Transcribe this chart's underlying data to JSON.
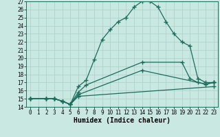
{
  "xlabel": "Humidex (Indice chaleur)",
  "xlim": [
    -0.5,
    23.5
  ],
  "ylim": [
    14,
    27
  ],
  "xticks": [
    0,
    1,
    2,
    3,
    4,
    5,
    6,
    7,
    8,
    9,
    10,
    11,
    12,
    13,
    14,
    15,
    16,
    17,
    18,
    19,
    20,
    21,
    22,
    23
  ],
  "yticks": [
    14,
    15,
    16,
    17,
    18,
    19,
    20,
    21,
    22,
    23,
    24,
    25,
    26,
    27
  ],
  "bg_color": "#c9e8e2",
  "line_color": "#1a6b5a",
  "grid_color": "#a8cfc6",
  "line1_x": [
    0,
    2,
    3,
    4,
    5,
    6,
    7,
    8,
    9,
    10,
    11,
    12,
    13,
    14,
    15,
    16,
    17,
    18,
    19,
    20,
    21,
    22,
    23
  ],
  "line1_y": [
    15,
    15,
    15,
    14.7,
    14.3,
    16.5,
    17.3,
    19.8,
    22.3,
    23.5,
    24.5,
    25.0,
    26.3,
    27.0,
    27.0,
    26.3,
    24.5,
    23.0,
    22.0,
    21.5,
    17.5,
    17.0,
    17.0
  ],
  "line2_x": [
    0,
    2,
    3,
    4,
    5,
    6,
    7,
    14,
    19,
    20,
    21,
    22,
    23
  ],
  "line2_y": [
    15,
    15,
    15,
    14.7,
    14.3,
    15.8,
    16.7,
    19.5,
    19.5,
    17.5,
    17.0,
    16.8,
    17.0
  ],
  "line3_x": [
    0,
    2,
    3,
    4,
    5,
    6,
    14,
    22,
    23
  ],
  "line3_y": [
    15,
    15,
    15,
    14.7,
    14.3,
    15.5,
    18.5,
    16.8,
    17.0
  ],
  "line4_x": [
    0,
    2,
    3,
    4,
    5,
    6,
    23
  ],
  "line4_y": [
    15,
    15,
    15,
    14.7,
    14.3,
    15.3,
    16.5
  ],
  "marker": "+",
  "markersize": 4,
  "linewidth": 0.9,
  "font_family": "monospace",
  "label_fontsize": 7,
  "tick_fontsize": 5.5
}
